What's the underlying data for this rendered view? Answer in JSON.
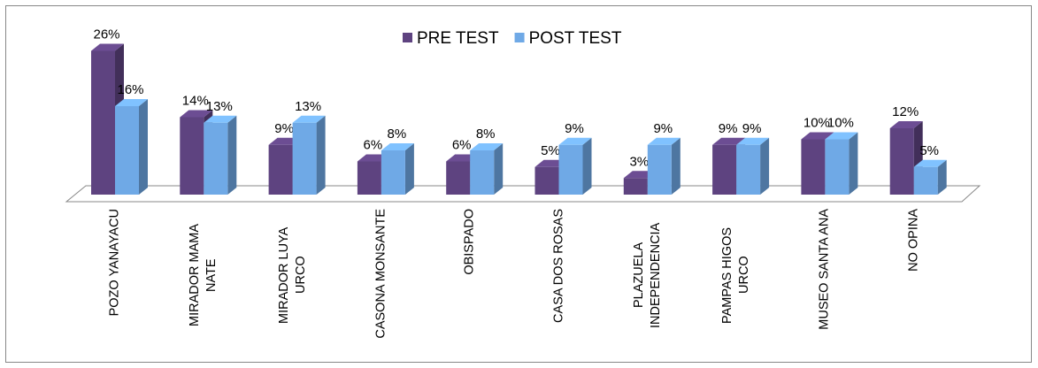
{
  "chart_data": {
    "type": "bar3d",
    "categories": [
      "POZO YANAYACU",
      "MIRADOR MAMA NATE",
      "MIRADOR LUYA URCO",
      "CASONA MONSANTE",
      "OBISPADO",
      "CASA DOS ROSAS",
      "PLAZUELA INDEPENDENCIA",
      "PAMPAS HIGOS URCO",
      "MUSEO SANTA ANA",
      "NO OPINA"
    ],
    "series": [
      {
        "name": "PRE TEST",
        "color": "#5e4380",
        "values": [
          26,
          14,
          9,
          6,
          6,
          5,
          3,
          9,
          10,
          12
        ],
        "value_labels": [
          "26%",
          "14%",
          "9%",
          "6%",
          "6%",
          "5%",
          "3%",
          "9%",
          "10%",
          "12%"
        ]
      },
      {
        "name": "POST TEST",
        "color": "#6fa9e6",
        "values": [
          16,
          13,
          13,
          8,
          8,
          9,
          9,
          9,
          10,
          5
        ],
        "value_labels": [
          "16%",
          "13%",
          "13%",
          "8%",
          "8%",
          "9%",
          "9%",
          "9%",
          "10%",
          "5%"
        ]
      }
    ],
    "legend": "top"
  }
}
